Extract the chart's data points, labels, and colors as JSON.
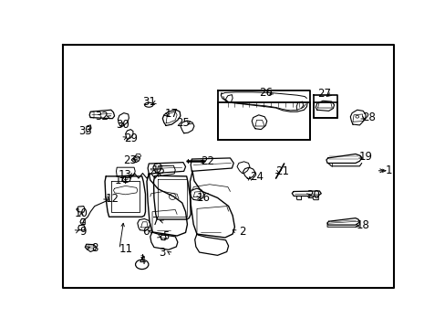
{
  "bg_color": "#ffffff",
  "line_color": "#000000",
  "fig_width": 4.89,
  "fig_height": 3.6,
  "dpi": 100,
  "label_fontsize": 8.5,
  "border": [
    0.025,
    0.025,
    0.96,
    0.955
  ]
}
